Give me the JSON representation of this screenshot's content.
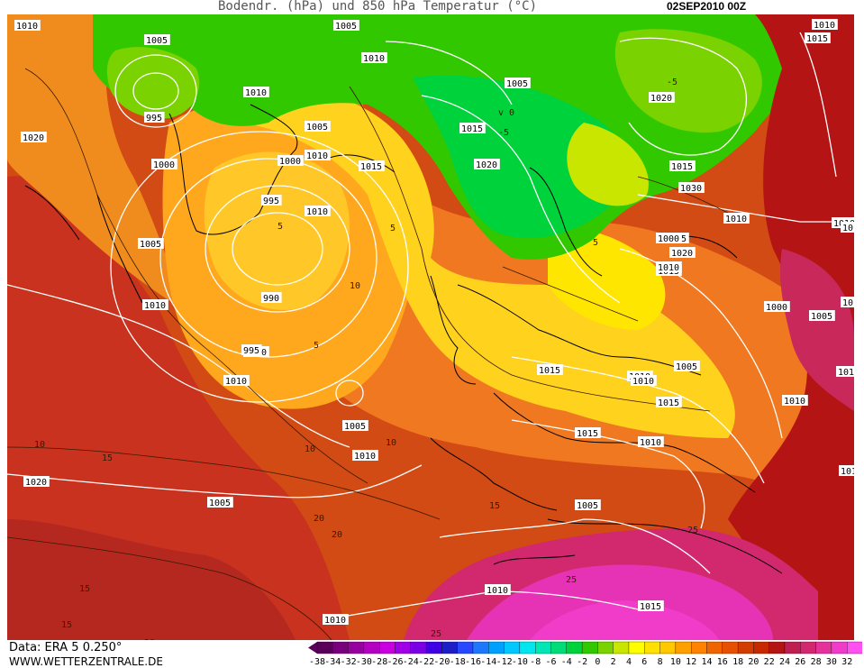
{
  "title": {
    "main": "Bodendr. (hPa) und 850 hPa Temperatur (°C)",
    "date": "02SEP2010 00Z"
  },
  "footer": {
    "data_source": "Data: ERA 5 0.250°",
    "website": "WWW.WETTERZENTRALE.DE"
  },
  "colorscale": {
    "labels": [
      "-38",
      "-34",
      "-32",
      "-30",
      "-28",
      "-26",
      "-24",
      "-22",
      "-20",
      "-18",
      "-16",
      "-14",
      "-12",
      "-10",
      "-8",
      "-6",
      "-4",
      "-2",
      "0",
      "2",
      "4",
      "6",
      "8",
      "10",
      "12",
      "14",
      "16",
      "18",
      "20",
      "22",
      "24",
      "26",
      "28",
      "30",
      "32"
    ],
    "colors": [
      "#5a005a",
      "#78007d",
      "#96009e",
      "#b400c0",
      "#c800e0",
      "#a000e6",
      "#7a00e6",
      "#4000e6",
      "#1e1ec8",
      "#2848ff",
      "#1e78ff",
      "#00a0ff",
      "#00c8ff",
      "#00e6f0",
      "#00e6b4",
      "#00dc78",
      "#00d23c",
      "#32c800",
      "#7ad200",
      "#c8e600",
      "#ffff00",
      "#ffe100",
      "#ffc800",
      "#ffa000",
      "#ff8200",
      "#f06400",
      "#e65000",
      "#d23c00",
      "#c82800",
      "#b41414",
      "#be1e50",
      "#d2286e",
      "#e6329b",
      "#f03cc8",
      "#ff50f0"
    ]
  },
  "isobar_labels": [
    "1010",
    "1005",
    "995",
    "1000",
    "1010",
    "1005",
    "1010",
    "1000",
    "1005",
    "1010",
    "995",
    "1010",
    "1000",
    "990",
    "995",
    "1005",
    "1010",
    "1015",
    "1010",
    "1005",
    "1020",
    "1015",
    "1020",
    "1015",
    "1030",
    "1025",
    "1020",
    "1015",
    "1010",
    "1005",
    "1000",
    "1005",
    "1010",
    "1010",
    "1010",
    "1020",
    "1005",
    "1010",
    "1015",
    "1010",
    "1015",
    "1015",
    "1010",
    "1010",
    "1010",
    "1020",
    "1010",
    "1010",
    "1010",
    "1015",
    "1010",
    "1005",
    "1000",
    "1010",
    "1005",
    "1010",
    "1015"
  ],
  "contour_value_labels": [
    "v 0",
    "10",
    "15",
    "15",
    "20",
    "20",
    "25",
    "25",
    "15",
    "5",
    "10",
    "10",
    "5",
    "5",
    "-5",
    "-5",
    "5",
    "10",
    "15",
    "20",
    "25"
  ]
}
